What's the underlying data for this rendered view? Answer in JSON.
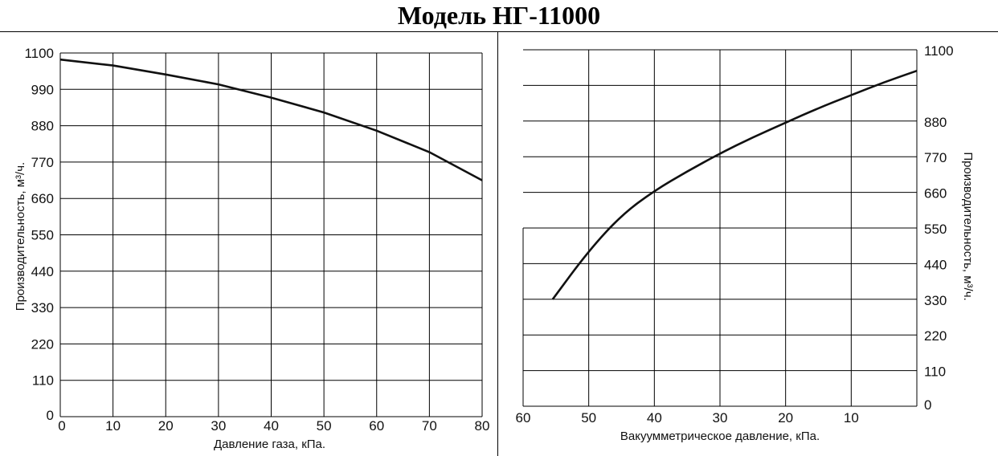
{
  "title": "Модель НГ-11000",
  "chart_data": [
    {
      "type": "line",
      "xlabel": "Давление газа, кПа.",
      "ylabel": "Производительность, м³/ч.",
      "xlim": [
        0,
        80
      ],
      "ylim": [
        0,
        1100
      ],
      "x_ticks": [
        "0",
        "10",
        "20",
        "30",
        "40",
        "50",
        "60",
        "70",
        "80"
      ],
      "y_ticks": [
        "0",
        "110",
        "220",
        "330",
        "440",
        "550",
        "660",
        "770",
        "880",
        "990",
        "1100"
      ],
      "grid": true,
      "series": [
        {
          "x": [
            0,
            10,
            20,
            30,
            40,
            50,
            60,
            70,
            80
          ],
          "y": [
            1080,
            1062,
            1035,
            1005,
            965,
            920,
            865,
            800,
            715
          ]
        }
      ]
    },
    {
      "type": "line",
      "xlabel": "Вакуумметрическое давление, кПа.",
      "ylabel": "Производительность, м³/ч.",
      "xlim": [
        60,
        0
      ],
      "ylim": [
        0,
        1100
      ],
      "x_ticks": [
        "60",
        "50",
        "40",
        "30",
        "20",
        "10"
      ],
      "y_ticks": [
        "0",
        "110",
        "220",
        "330",
        "440",
        "550",
        "660",
        "770",
        "880",
        "1100"
      ],
      "y_axis_position": "right",
      "grid": true,
      "series": [
        {
          "x": [
            55.5,
            50,
            45,
            40,
            35,
            30,
            25,
            20,
            15,
            10,
            5,
            0
          ],
          "y": [
            330,
            480,
            590,
            665,
            725,
            780,
            830,
            875,
            920,
            960,
            1000,
            1035
          ]
        }
      ]
    }
  ]
}
